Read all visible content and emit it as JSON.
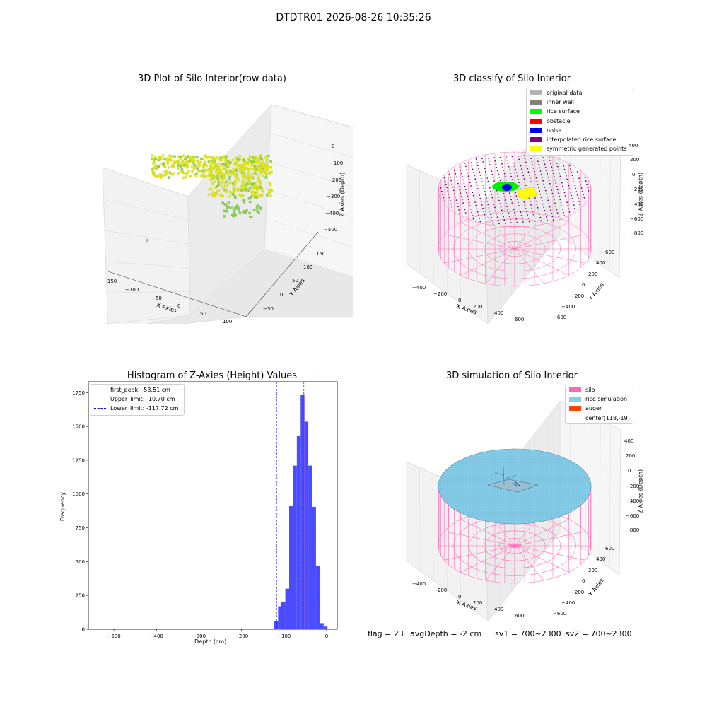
{
  "figure_title": "DTDTR01 2026-08-26 10:35:26",
  "panel1": {
    "title": "3D Plot of Silo Interior(row data)",
    "xlabel": "X Axies",
    "ylabel": "Y Axies",
    "zlabel": "Z Axies (Depth)",
    "xticks": [
      "−150",
      "−100",
      "−50",
      "0",
      "50",
      "100"
    ],
    "yticks": [
      "−50",
      "0",
      "50",
      "100",
      "150"
    ],
    "zticks": [
      "0",
      "−100",
      "−200",
      "−300",
      "−400",
      "−500"
    ]
  },
  "panel2": {
    "title": "3D classify of Silo Interior",
    "xlabel": "X Axies",
    "ylabel": "Y Axies",
    "zlabel": "Z Axies (Depth)",
    "xticks": [
      "−400",
      "−200",
      "0",
      "200",
      "400",
      "600"
    ],
    "yticks": [
      "−600",
      "−400",
      "−200",
      "0",
      "200",
      "400",
      "600"
    ],
    "zticks": [
      "400",
      "200",
      "0",
      "−200",
      "−400",
      "−600",
      "−800"
    ],
    "legend": [
      {
        "label": "original data",
        "color": "#b4b4b4"
      },
      {
        "label": "inner wall",
        "color": "#808080"
      },
      {
        "label": "rice surface",
        "color": "#00ff00"
      },
      {
        "label": "obstacle",
        "color": "#ff0000"
      },
      {
        "label": "noise",
        "color": "#0000ff"
      },
      {
        "label": "interpolated rice surface",
        "color": "#800080"
      },
      {
        "label": "symmetric generated points",
        "color": "#ffff00"
      }
    ]
  },
  "panel3": {
    "title": "Histogram of Z-Axies (Height) Values",
    "xlabel": "Depth (cm)",
    "ylabel": "Frequency",
    "xticks": [
      "−500",
      "−400",
      "−300",
      "−200",
      "−100",
      "0"
    ],
    "yticks": [
      "0",
      "250",
      "500",
      "750",
      "1000",
      "1250",
      "1500",
      "1750"
    ],
    "legend": [
      {
        "label": "first_peak: -53.51 cm",
        "color": "#ff0000"
      },
      {
        "label": "Upper_limit: -10.70 cm",
        "color": "#0000ff"
      },
      {
        "label": "Lower_limit: -117.72 cm",
        "color": "#0000ff"
      }
    ]
  },
  "panel4": {
    "title": "3D simulation of Silo Interior",
    "xlabel": "X Axies",
    "ylabel": "Y Axies",
    "zlabel": "Z Axies (Depth)",
    "xticks": [
      "−400",
      "−200",
      "0",
      "200",
      "400",
      "600"
    ],
    "yticks": [
      "−600",
      "−400",
      "−200",
      "0",
      "200",
      "400",
      "600"
    ],
    "zticks": [
      "400",
      "200",
      "0",
      "−200",
      "−400",
      "−600",
      "−800"
    ],
    "legend": [
      {
        "label": "silo",
        "color": "#ff69b4"
      },
      {
        "label": "rice simulation",
        "color": "#87ceeb"
      },
      {
        "label": "auger",
        "color": "#ff4500"
      },
      {
        "label": "center(118,-19)",
        "color": ""
      }
    ]
  },
  "status": {
    "flag": "flag = 23",
    "avg_depth": "avgDepth = -2 cm",
    "sv1": "sv1 = 700~2300",
    "sv2": "sv2 = 700~2300"
  },
  "chart_data": [
    {
      "type": "scatter",
      "title": "3D Plot of Silo Interior(row data)",
      "xlabel": "X Axies",
      "ylabel": "Y Axies",
      "zlabel": "Z Axies (Depth)",
      "xlim": [
        -160,
        120
      ],
      "ylim": [
        -70,
        170
      ],
      "zlim": [
        -560,
        10
      ],
      "colormap": [
        "#7ec850",
        "#d8e01a"
      ]
    },
    {
      "type": "scatter",
      "title": "3D classify of Silo Interior",
      "xlim": [
        -500,
        700
      ],
      "ylim": [
        -650,
        650
      ],
      "zlim": [
        -900,
        450
      ],
      "series": [
        {
          "name": "original data",
          "color": "#b4b4b4"
        },
        {
          "name": "inner wall",
          "color": "#808080"
        },
        {
          "name": "rice surface",
          "color": "#00ff00"
        },
        {
          "name": "obstacle",
          "color": "#ff0000"
        },
        {
          "name": "noise",
          "color": "#0000ff"
        },
        {
          "name": "interpolated rice surface",
          "color": "#800080"
        },
        {
          "name": "symmetric generated points",
          "color": "#ffff00"
        }
      ]
    },
    {
      "type": "bar",
      "title": "Histogram of Z-Axies (Height) Values",
      "xlabel": "Depth (cm)",
      "ylabel": "Frequency",
      "xlim": [
        -560,
        25
      ],
      "ylim": [
        0,
        1830
      ],
      "bins": [
        {
          "x0": -124,
          "x1": -114,
          "count": 60
        },
        {
          "x0": -114,
          "x1": -107,
          "count": 170
        },
        {
          "x0": -107,
          "x1": -97,
          "count": 200
        },
        {
          "x0": -97,
          "x1": -88,
          "count": 300
        },
        {
          "x0": -88,
          "x1": -79,
          "count": 910
        },
        {
          "x0": -79,
          "x1": -70,
          "count": 1210
        },
        {
          "x0": -70,
          "x1": -61,
          "count": 1430
        },
        {
          "x0": -61,
          "x1": -52,
          "count": 1735
        },
        {
          "x0": -52,
          "x1": -43,
          "count": 1535
        },
        {
          "x0": -43,
          "x1": -34,
          "count": 1210
        },
        {
          "x0": -34,
          "x1": -25,
          "count": 905
        },
        {
          "x0": -25,
          "x1": -16,
          "count": 470
        },
        {
          "x0": -16,
          "x1": -7,
          "count": 45
        },
        {
          "x0": -7,
          "x1": 2,
          "count": 20
        }
      ],
      "bar_color": "#4b4bff",
      "vlines": [
        {
          "name": "first_peak",
          "value": -53.51,
          "color": "#ff0000"
        },
        {
          "name": "Upper_limit",
          "value": -10.7,
          "color": "#0000ff"
        },
        {
          "name": "Lower_limit",
          "value": -117.72,
          "color": "#0000ff"
        }
      ]
    },
    {
      "type": "area",
      "title": "3D simulation of Silo Interior",
      "xlim": [
        -500,
        700
      ],
      "ylim": [
        -650,
        650
      ],
      "zlim": [
        -900,
        450
      ],
      "series": [
        {
          "name": "silo",
          "color": "#ff69b4"
        },
        {
          "name": "rice simulation",
          "color": "#87ceeb"
        },
        {
          "name": "auger",
          "color": "#ff4500"
        },
        {
          "name": "center(118,-19)"
        }
      ]
    }
  ]
}
